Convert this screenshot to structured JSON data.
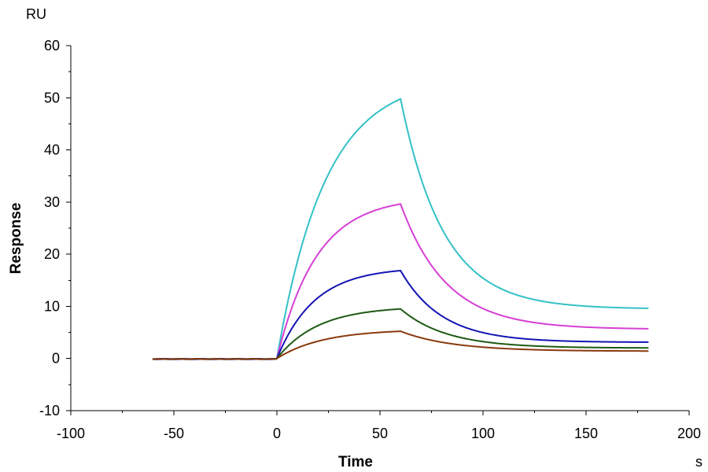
{
  "chart_data": {
    "type": "line",
    "xlabel": "Time",
    "ylabel": "Response",
    "x_unit": "s",
    "y_unit": "RU",
    "xlim": [
      -100,
      200
    ],
    "ylim": [
      -10,
      60
    ],
    "x_ticks": [
      "-100",
      "-50",
      "0",
      "50",
      "100",
      "150",
      "200"
    ],
    "y_ticks": [
      "-10",
      "0",
      "10",
      "20",
      "30",
      "40",
      "50",
      "60"
    ],
    "grid": false,
    "legend": "none",
    "kinetics": {
      "baseline_start_s": -60,
      "injection_start_s": 0,
      "injection_end_s": 60,
      "run_end_s": 180
    },
    "series": [
      {
        "color": "#33c1c6",
        "association_max": 54.0,
        "kon_rate": 0.0425,
        "dissociation_plateau": 9.5,
        "koff_rate": 0.048
      },
      {
        "color": "#d63fd6",
        "association_max": 31.0,
        "kon_rate": 0.052,
        "dissociation_plateau": 5.6,
        "koff_rate": 0.045
      },
      {
        "color": "#1414b4",
        "association_max": 17.5,
        "kon_rate": 0.055,
        "dissociation_plateau": 3.1,
        "koff_rate": 0.05
      },
      {
        "color": "#1e5a14",
        "association_max": 10.0,
        "kon_rate": 0.05,
        "dissociation_plateau": 2.0,
        "koff_rate": 0.045
      },
      {
        "color": "#8a3a10",
        "association_max": 5.6,
        "kon_rate": 0.045,
        "dissociation_plateau": 1.4,
        "koff_rate": 0.04
      }
    ]
  }
}
